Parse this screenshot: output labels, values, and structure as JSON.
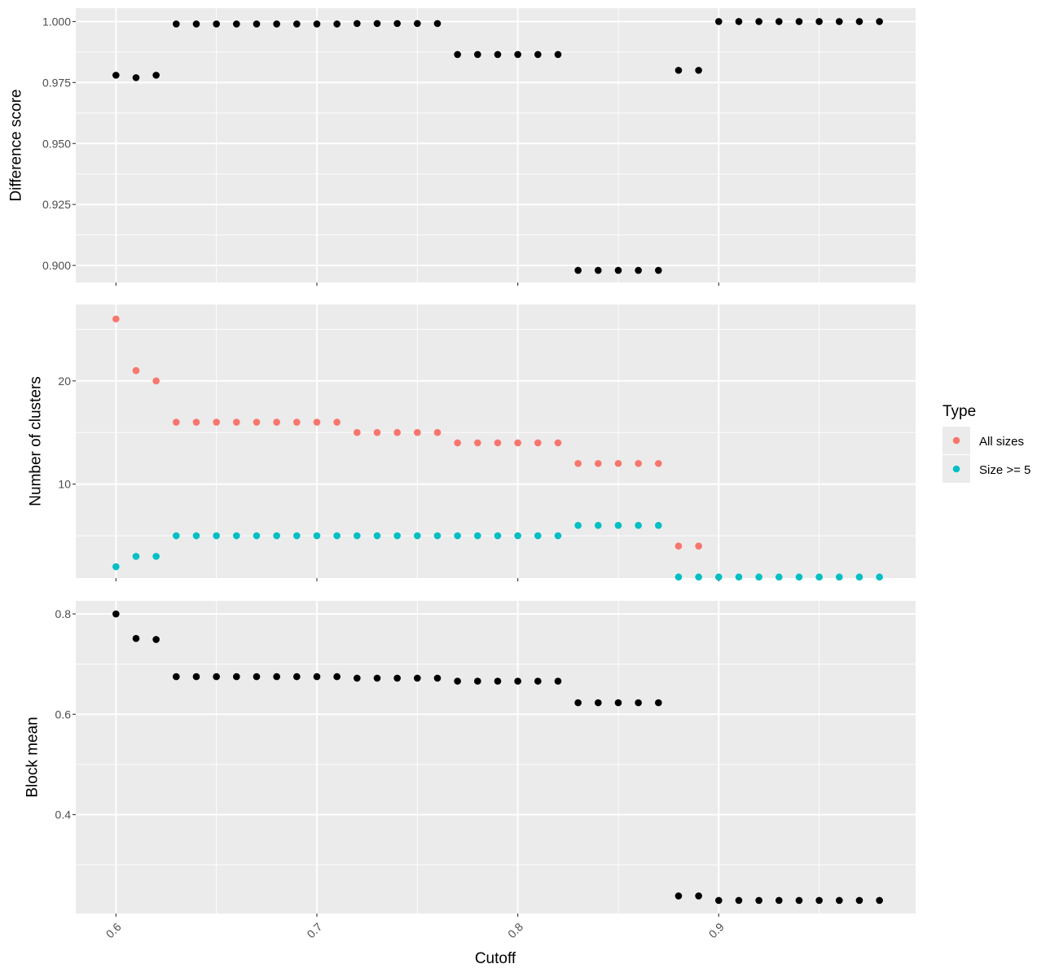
{
  "colors": {
    "panel_bg": "#ebebeb",
    "grid_major": "#ffffff",
    "point_default": "#000000",
    "tick": "#333333",
    "all_sizes": "#F8766D",
    "size_ge_5": "#00BFC4"
  },
  "x_axis": {
    "title": "Cutoff",
    "range": [
      0.58,
      0.998
    ],
    "ticks": [
      0.6,
      0.7,
      0.8,
      0.9
    ],
    "tick_labels": [
      "0.6",
      "0.7",
      "0.8",
      "0.9"
    ],
    "minor_ticks": [
      0.65,
      0.75,
      0.85,
      0.95
    ]
  },
  "legend": {
    "title": "Type",
    "placement": "right",
    "entries": [
      {
        "label": "All sizes",
        "color": "#F8766D"
      },
      {
        "label": "Size >= 5",
        "color": "#00BFC4"
      }
    ]
  },
  "chart_data": [
    {
      "type": "scatter",
      "ylabel": "Difference score",
      "ylim": [
        0.893,
        1.0055
      ],
      "yticks": [
        0.9,
        0.925,
        0.95,
        0.975,
        1.0
      ],
      "ytick_labels": [
        "0.900",
        "0.925",
        "0.950",
        "0.975",
        "1.000"
      ],
      "grid": true,
      "series": [
        {
          "x": [
            0.6,
            0.61,
            0.62,
            0.63,
            0.64,
            0.65,
            0.66,
            0.67,
            0.68,
            0.69,
            0.7,
            0.71,
            0.72,
            0.73,
            0.74,
            0.75,
            0.76,
            0.77,
            0.78,
            0.79,
            0.8,
            0.81,
            0.82,
            0.83,
            0.84,
            0.85,
            0.86,
            0.87,
            0.88,
            0.89,
            0.9,
            0.91,
            0.92,
            0.93,
            0.94,
            0.95,
            0.96,
            0.97,
            0.98
          ],
          "y": [
            0.978,
            0.977,
            0.978,
            0.999,
            0.999,
            0.999,
            0.999,
            0.999,
            0.999,
            0.999,
            0.999,
            0.999,
            0.9992,
            0.9992,
            0.9992,
            0.9992,
            0.9992,
            0.9865,
            0.9865,
            0.9865,
            0.9865,
            0.9865,
            0.9865,
            0.898,
            0.898,
            0.898,
            0.898,
            0.898,
            0.98,
            0.98,
            1.0,
            1.0,
            1.0,
            1.0,
            1.0,
            1.0,
            1.0,
            1.0,
            1.0
          ]
        }
      ]
    },
    {
      "type": "scatter",
      "ylabel": "Number of clusters",
      "ylim": [
        0.9,
        27.4
      ],
      "yticks": [
        10,
        20
      ],
      "ytick_labels": [
        "10",
        "20"
      ],
      "grid": true,
      "series": [
        {
          "name": "All sizes",
          "x": [
            0.6,
            0.61,
            0.62,
            0.63,
            0.64,
            0.65,
            0.66,
            0.67,
            0.68,
            0.69,
            0.7,
            0.71,
            0.72,
            0.73,
            0.74,
            0.75,
            0.76,
            0.77,
            0.78,
            0.79,
            0.8,
            0.81,
            0.82,
            0.83,
            0.84,
            0.85,
            0.86,
            0.87,
            0.88,
            0.89
          ],
          "y": [
            26,
            21,
            20,
            16,
            16,
            16,
            16,
            16,
            16,
            16,
            16,
            16,
            15,
            15,
            15,
            15,
            15,
            14,
            14,
            14,
            14,
            14,
            14,
            12,
            12,
            12,
            12,
            12,
            4,
            4
          ]
        },
        {
          "name": "Size >= 5",
          "x": [
            0.6,
            0.61,
            0.62,
            0.63,
            0.64,
            0.65,
            0.66,
            0.67,
            0.68,
            0.69,
            0.7,
            0.71,
            0.72,
            0.73,
            0.74,
            0.75,
            0.76,
            0.77,
            0.78,
            0.79,
            0.8,
            0.81,
            0.82,
            0.83,
            0.84,
            0.85,
            0.86,
            0.87,
            0.88,
            0.89,
            0.9,
            0.91,
            0.92,
            0.93,
            0.94,
            0.95,
            0.96,
            0.97,
            0.98
          ],
          "y": [
            2,
            3,
            3,
            5,
            5,
            5,
            5,
            5,
            5,
            5,
            5,
            5,
            5,
            5,
            5,
            5,
            5,
            5,
            5,
            5,
            5,
            5,
            5,
            6,
            6,
            6,
            6,
            6,
            1,
            1,
            1,
            1,
            1,
            1,
            1,
            1,
            1,
            1,
            1
          ]
        }
      ]
    },
    {
      "type": "scatter",
      "ylabel": "Block mean",
      "ylim": [
        0.203,
        0.826
      ],
      "yticks": [
        0.4,
        0.6,
        0.8
      ],
      "ytick_labels": [
        "0.4",
        "0.6",
        "0.8"
      ],
      "grid": true,
      "series": [
        {
          "x": [
            0.6,
            0.61,
            0.62,
            0.63,
            0.64,
            0.65,
            0.66,
            0.67,
            0.68,
            0.69,
            0.7,
            0.71,
            0.72,
            0.73,
            0.74,
            0.75,
            0.76,
            0.77,
            0.78,
            0.79,
            0.8,
            0.81,
            0.82,
            0.83,
            0.84,
            0.85,
            0.86,
            0.87,
            0.88,
            0.89,
            0.9,
            0.91,
            0.92,
            0.93,
            0.94,
            0.95,
            0.96,
            0.97,
            0.98
          ],
          "y": [
            0.8,
            0.751,
            0.749,
            0.675,
            0.675,
            0.675,
            0.675,
            0.675,
            0.675,
            0.675,
            0.675,
            0.675,
            0.672,
            0.672,
            0.672,
            0.672,
            0.672,
            0.666,
            0.666,
            0.666,
            0.666,
            0.666,
            0.666,
            0.623,
            0.623,
            0.623,
            0.623,
            0.623,
            0.238,
            0.238,
            0.229,
            0.229,
            0.229,
            0.229,
            0.229,
            0.229,
            0.229,
            0.229,
            0.229
          ]
        }
      ]
    }
  ]
}
